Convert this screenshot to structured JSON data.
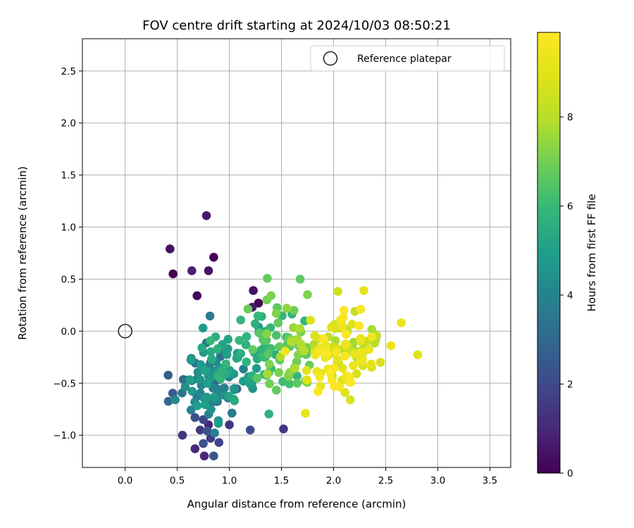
{
  "chart_data": {
    "type": "scatter",
    "title": "FOV centre drift starting at 2024/10/03 08:50:21",
    "xlabel": "Angular distance from reference (arcmin)",
    "ylabel": "Rotation from reference (arcmin)",
    "xlim": [
      -0.41,
      3.7
    ],
    "ylim": [
      -1.31,
      2.81
    ],
    "xticks": [
      0.0,
      0.5,
      1.0,
      1.5,
      2.0,
      2.5,
      3.0,
      3.5
    ],
    "xtick_labels": [
      "0.0",
      "0.5",
      "1.0",
      "1.5",
      "2.0",
      "2.5",
      "3.0",
      "3.5"
    ],
    "yticks": [
      -1.0,
      -0.5,
      0.0,
      0.5,
      1.0,
      1.5,
      2.0,
      2.5
    ],
    "ytick_labels": [
      "−1.0",
      "−0.5",
      "0.0",
      "0.5",
      "1.0",
      "1.5",
      "2.0",
      "2.5"
    ],
    "grid": true,
    "legend": {
      "placement": "top-right",
      "entries": [
        "Reference platepar"
      ]
    },
    "reference_point": {
      "x": 0.0,
      "y": 0.0,
      "marker": "open-circle"
    },
    "colorbar": {
      "label": "Hours from first FF file",
      "colormap": "viridis",
      "range": [
        0,
        9.9
      ],
      "ticks": [
        0,
        2,
        4,
        6,
        8
      ],
      "tick_labels": [
        "0",
        "2",
        "4",
        "6",
        "8"
      ]
    },
    "clusters": [
      {
        "hours": [
          0.0,
          0.9
        ],
        "points": [
          [
            0.78,
            1.11
          ],
          [
            0.43,
            0.79
          ],
          [
            0.85,
            0.71
          ],
          [
            0.46,
            0.55
          ],
          [
            0.64,
            0.58
          ],
          [
            0.8,
            0.58
          ],
          [
            0.69,
            0.34
          ],
          [
            1.23,
            0.39
          ],
          [
            1.28,
            0.27
          ],
          [
            1.22,
            0.23
          ]
        ]
      },
      {
        "hours": [
          1.0,
          2.5
        ],
        "points": [
          [
            0.76,
            -1.2
          ],
          [
            0.85,
            -1.2
          ],
          [
            0.75,
            -1.08
          ],
          [
            0.55,
            -1.0
          ],
          [
            0.67,
            -1.13
          ],
          [
            0.82,
            -1.03
          ],
          [
            0.9,
            -1.07
          ],
          [
            0.79,
            -0.96
          ],
          [
            0.72,
            -0.95
          ],
          [
            0.8,
            -0.9
          ],
          [
            1.0,
            -0.9
          ],
          [
            1.2,
            -0.95
          ],
          [
            1.52,
            -0.94
          ],
          [
            0.67,
            -0.83
          ],
          [
            0.75,
            -0.85
          ]
        ]
      },
      {
        "hours": [
          2.5,
          5.0
        ],
        "cx": 0.78,
        "cy": -0.48,
        "sx": 0.16,
        "sy": 0.2,
        "n": 75
      },
      {
        "hours": [
          4.5,
          6.0
        ],
        "cx": 1.05,
        "cy": -0.33,
        "sx": 0.15,
        "sy": 0.2,
        "n": 45
      },
      {
        "hours": [
          5.5,
          7.0
        ],
        "cx": 1.38,
        "cy": -0.05,
        "sx": 0.14,
        "sy": 0.22,
        "n": 40
      },
      {
        "hours": [
          6.5,
          8.0
        ],
        "cx": 1.6,
        "cy": -0.22,
        "sx": 0.15,
        "sy": 0.2,
        "n": 40
      },
      {
        "hours": [
          7.5,
          8.8
        ],
        "cx": 2.15,
        "cy": -0.1,
        "sx": 0.2,
        "sy": 0.18,
        "n": 45
      },
      {
        "hours": [
          8.8,
          9.9
        ],
        "cx": 2.0,
        "cy": -0.2,
        "sx": 0.2,
        "sy": 0.18,
        "n": 55
      },
      {
        "hours": [
          6.5,
          7.5
        ],
        "points": [
          [
            1.68,
            0.5
          ],
          [
            1.4,
            0.34
          ],
          [
            1.75,
            0.35
          ],
          [
            1.36,
            0.3
          ],
          [
            1.55,
            0.22
          ],
          [
            1.62,
            0.2
          ],
          [
            1.45,
            0.17
          ]
        ]
      },
      {
        "hours": [
          8.5,
          9.9
        ],
        "points": [
          [
            2.29,
            0.39
          ],
          [
            2.26,
            0.21
          ],
          [
            2.1,
            0.2
          ],
          [
            1.73,
            -0.79
          ],
          [
            2.16,
            -0.66
          ],
          [
            2.11,
            -0.59
          ],
          [
            1.85,
            -0.58
          ],
          [
            2.45,
            -0.3
          ],
          [
            2.55,
            -0.14
          ],
          [
            2.65,
            0.08
          ]
        ]
      }
    ]
  }
}
